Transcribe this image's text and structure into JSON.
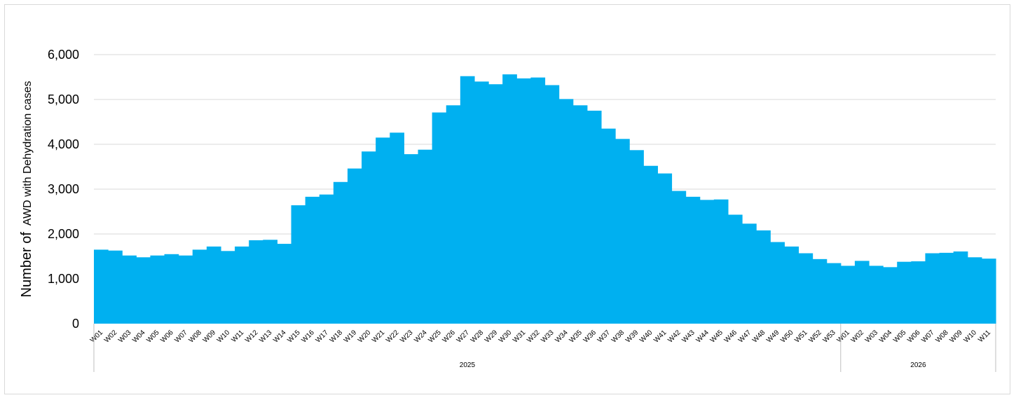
{
  "chart_data": {
    "type": "bar",
    "title": "",
    "ylabel_prefix": "Number of",
    "ylabel_main": "AWD with Dehydration cases",
    "ylim": [
      0,
      6000
    ],
    "yticks": [
      0,
      1000,
      2000,
      3000,
      4000,
      5000,
      6000
    ],
    "ytick_labels": [
      "0",
      "1,000",
      "2,000",
      "3,000",
      "4,000",
      "5,000",
      "6,000"
    ],
    "grid": true,
    "legend": "none",
    "bar_color": "#00B0F0",
    "groups": [
      {
        "label": "2025",
        "count": 53
      },
      {
        "label": "2026",
        "count": 11
      }
    ],
    "categories": [
      "W01",
      "W02",
      "W03",
      "W04",
      "W05",
      "W06",
      "W07",
      "W08",
      "W09",
      "W10",
      "W11",
      "W12",
      "W13",
      "W14",
      "W15",
      "W16",
      "W17",
      "W18",
      "W19",
      "W20",
      "W21",
      "W22",
      "W23",
      "W24",
      "W25",
      "W26",
      "W27",
      "W28",
      "W29",
      "W30",
      "W31",
      "W32",
      "W33",
      "W34",
      "W35",
      "W36",
      "W37",
      "W38",
      "W39",
      "W40",
      "W41",
      "W42",
      "W43",
      "W44",
      "W45",
      "W46",
      "W47",
      "W48",
      "W49",
      "W50",
      "W51",
      "W52",
      "W53",
      "W01",
      "W02",
      "W03",
      "W04",
      "W05",
      "W06",
      "W07",
      "W08",
      "W09",
      "W10",
      "W11"
    ],
    "values": [
      1650,
      1630,
      1520,
      1480,
      1520,
      1550,
      1520,
      1650,
      1720,
      1620,
      1720,
      1860,
      1870,
      1780,
      2640,
      2830,
      2880,
      3160,
      3460,
      3840,
      4150,
      4260,
      3780,
      3880,
      4710,
      4870,
      5520,
      5400,
      5340,
      5560,
      5470,
      5490,
      5320,
      5010,
      4870,
      4750,
      4350,
      4120,
      3870,
      3520,
      3350,
      2960,
      2830,
      2760,
      2770,
      2430,
      2230,
      2080,
      1820,
      1720,
      1570,
      1440,
      1350,
      1290,
      1400,
      1290,
      1260,
      1380,
      1390,
      1570,
      1580,
      1610,
      1480,
      1450
    ]
  }
}
